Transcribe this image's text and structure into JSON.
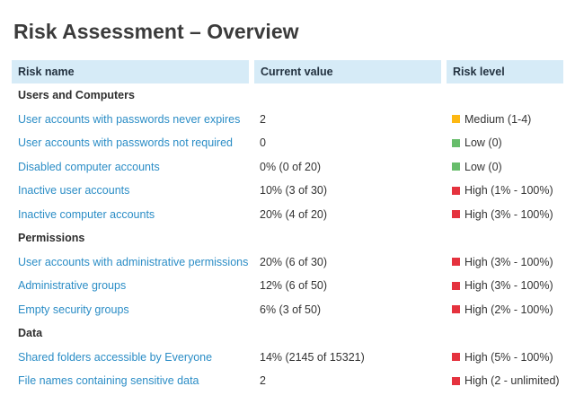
{
  "page": {
    "title": "Risk Assessment – Overview"
  },
  "colors": {
    "header_bg": "#d6ebf7",
    "link": "#2b8dc6",
    "high": "#e5323e",
    "medium": "#fdb813",
    "low": "#67bd6b"
  },
  "table": {
    "headers": [
      "Risk name",
      "Current value",
      "Risk level"
    ],
    "sections": [
      {
        "label": "Users and Computers",
        "rows": [
          {
            "name": "User accounts with passwords never expires",
            "value": "2",
            "level": "Medium (1-4)",
            "severity": "medium"
          },
          {
            "name": "User accounts with passwords not required",
            "value": "0",
            "level": "Low (0)",
            "severity": "low"
          },
          {
            "name": "Disabled computer accounts",
            "value": "0% (0 of 20)",
            "level": "Low (0)",
            "severity": "low"
          },
          {
            "name": "Inactive user accounts",
            "value": "10% (3 of 30)",
            "level": "High (1% - 100%)",
            "severity": "high"
          },
          {
            "name": "Inactive computer accounts",
            "value": "20% (4 of 20)",
            "level": "High (3% - 100%)",
            "severity": "high"
          }
        ]
      },
      {
        "label": "Permissions",
        "rows": [
          {
            "name": "User accounts with administrative permissions",
            "value": "20% (6 of 30)",
            "level": "High (3% - 100%)",
            "severity": "high"
          },
          {
            "name": "Administrative groups",
            "value": "12% (6 of 50)",
            "level": "High (3% - 100%)",
            "severity": "high"
          },
          {
            "name": "Empty security groups",
            "value": "6% (3 of 50)",
            "level": "High (2% - 100%)",
            "severity": "high"
          }
        ]
      },
      {
        "label": "Data",
        "rows": [
          {
            "name": "Shared folders accessible by Everyone",
            "value": "14% (2145 of 15321)",
            "level": "High (5% - 100%)",
            "severity": "high"
          },
          {
            "name": "File names containing sensitive data",
            "value": "2",
            "level": "High (2 - unlimited)",
            "severity": "high"
          }
        ]
      }
    ]
  }
}
